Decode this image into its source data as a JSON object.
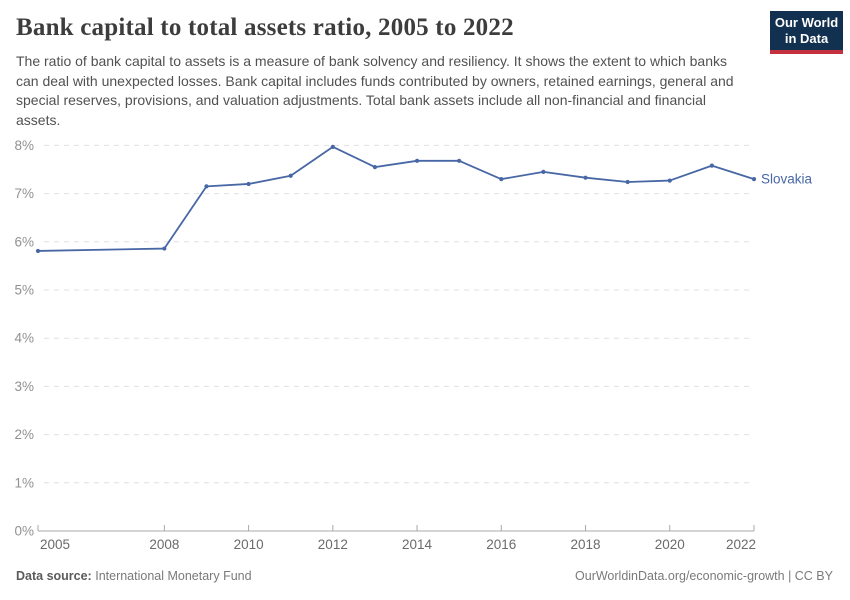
{
  "header": {
    "title": "Bank capital to total assets ratio, 2005 to 2022",
    "subtitle": "The ratio of bank capital to assets is a measure of bank solvency and resiliency. It shows the extent to which banks can deal with unexpected losses. Bank capital includes funds contributed by owners, retained earnings, general and special reserves, provisions, and valuation adjustments. Total bank assets include all non-financial and financial assets.",
    "logo": {
      "line1": "Our World",
      "line2": "in Data"
    }
  },
  "chart_data": {
    "type": "line",
    "title": "Bank capital to total assets ratio, 2005 to 2022",
    "xlabel": "",
    "ylabel": "",
    "xlim": [
      2005,
      2022
    ],
    "ylim": [
      0,
      8
    ],
    "xticks": [
      2005,
      2008,
      2010,
      2012,
      2014,
      2016,
      2018,
      2020,
      2022
    ],
    "yticks": [
      0,
      1,
      2,
      3,
      4,
      5,
      6,
      7,
      8
    ],
    "ytick_suffix": "%",
    "grid": "horizontal-dashed",
    "legend_position": "end-of-line-label",
    "series": [
      {
        "name": "Slovakia",
        "x": [
          2005,
          2008,
          2009,
          2010,
          2011,
          2012,
          2013,
          2014,
          2015,
          2016,
          2017,
          2018,
          2019,
          2020,
          2021,
          2022
        ],
        "values": [
          5.81,
          5.86,
          7.15,
          7.2,
          7.37,
          7.97,
          7.55,
          7.68,
          7.68,
          7.3,
          7.45,
          7.33,
          7.24,
          7.27,
          7.58,
          7.3
        ]
      }
    ]
  },
  "footer": {
    "datasource_label": "Data source:",
    "datasource_value": "International Monetary Fund",
    "credit": "OurWorldinData.org/economic-growth | CC BY"
  },
  "colors": {
    "line": "#4767a5",
    "grid": "#e0e0e0",
    "axis": "#a8a8a8",
    "ytick_label": "#919191",
    "xtick_label": "#6b6b6b",
    "logo_bg": "#12304f",
    "logo_accent": "#c5303e"
  }
}
